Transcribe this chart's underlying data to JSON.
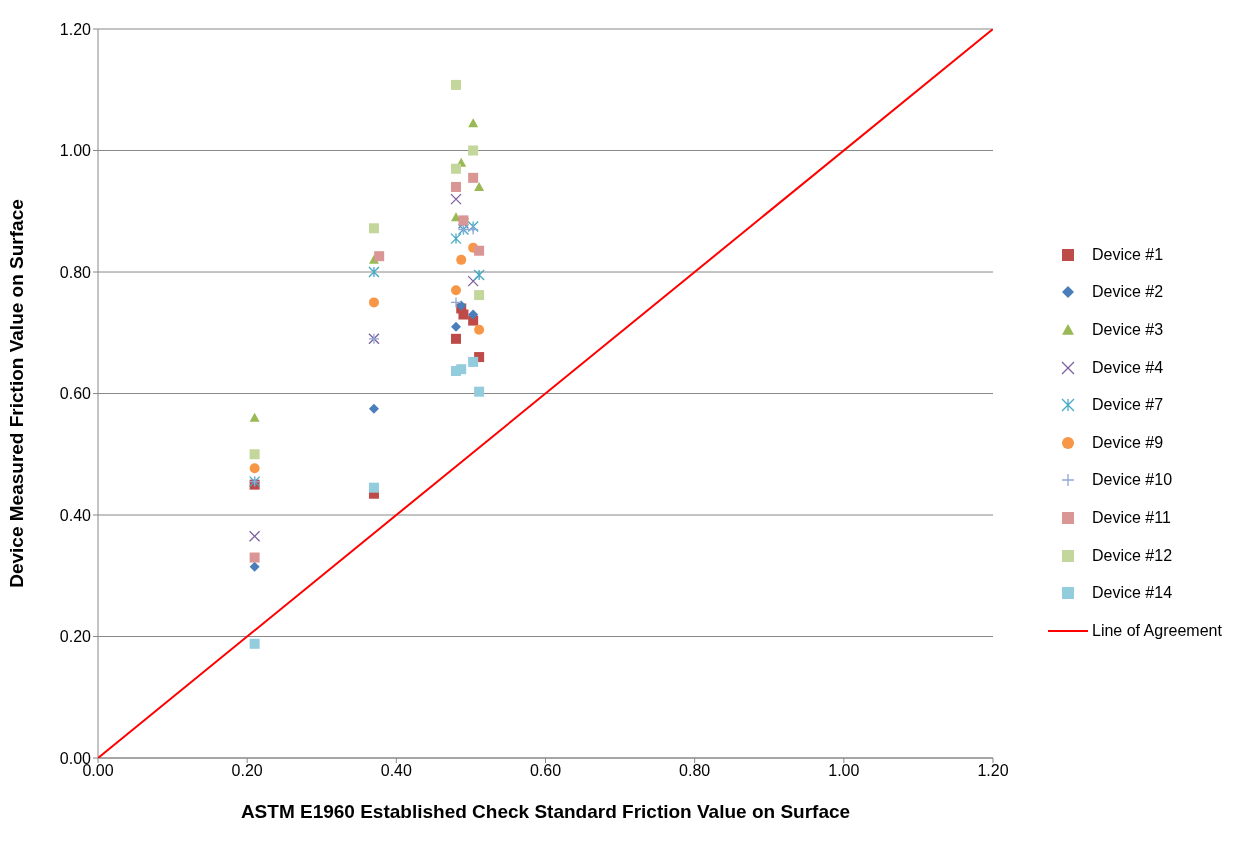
{
  "chart_data": {
    "type": "scatter",
    "xlabel": "ASTM E1960 Established Check Standard Friction Value on Surface",
    "ylabel": "Device Measured Friction Value on Surface",
    "xlim": [
      0,
      1.2
    ],
    "xticks": [
      {
        "value": 0,
        "label": "0.00"
      },
      {
        "value": 0.2,
        "label": "0.20"
      },
      {
        "value": 0.4,
        "label": "0.40"
      },
      {
        "value": 0.6,
        "label": "0.60"
      },
      {
        "value": 0.8,
        "label": "0.80"
      },
      {
        "value": 1,
        "label": "1.00"
      },
      {
        "value": 1.2,
        "label": "1.20"
      }
    ],
    "ylim": [
      0,
      1.2
    ],
    "yticks": [
      {
        "value": 0,
        "label": "0.00"
      },
      {
        "value": 0.2,
        "label": "0.20"
      },
      {
        "value": 0.4,
        "label": "0.40"
      },
      {
        "value": 0.6,
        "label": "0.60"
      },
      {
        "value": 0.8,
        "label": "0.80"
      },
      {
        "value": 1,
        "label": "1.00"
      },
      {
        "value": 1.2,
        "label": "1.20"
      }
    ],
    "grid": "y",
    "legend": "right",
    "series": [
      {
        "name": "Device #1",
        "color": "#be4b48",
        "marker": "square",
        "x": [
          0.21,
          0.37,
          0.48,
          0.487,
          0.49,
          0.503,
          0.511
        ],
        "values": [
          0.45,
          0.435,
          0.69,
          0.74,
          0.73,
          0.72,
          0.66
        ]
      },
      {
        "name": "Device #2",
        "color": "#4a7ebb",
        "marker": "diamond",
        "x": [
          0.21,
          0.37,
          0.48,
          0.487,
          0.503
        ],
        "values": [
          0.315,
          0.575,
          0.71,
          0.745,
          0.73
        ]
      },
      {
        "name": "Device #3",
        "color": "#98b954",
        "marker": "triangle",
        "x": [
          0.21,
          0.37,
          0.48,
          0.487,
          0.503,
          0.511
        ],
        "values": [
          0.56,
          0.82,
          0.89,
          0.98,
          1.045,
          0.94
        ]
      },
      {
        "name": "Device #4",
        "color": "#7d60a0",
        "marker": "x",
        "x": [
          0.21,
          0.37,
          0.48,
          0.49,
          0.503
        ],
        "values": [
          0.365,
          0.69,
          0.92,
          0.88,
          0.785
        ]
      },
      {
        "name": "Device #7",
        "color": "#46aac5",
        "marker": "cross",
        "x": [
          0.21,
          0.37,
          0.48,
          0.49,
          0.503,
          0.511
        ],
        "values": [
          0.455,
          0.8,
          0.855,
          0.87,
          0.875,
          0.795
        ]
      },
      {
        "name": "Device #9",
        "color": "#f79646",
        "marker": "circle",
        "x": [
          0.21,
          0.37,
          0.48,
          0.487,
          0.503,
          0.511
        ],
        "values": [
          0.477,
          0.75,
          0.77,
          0.82,
          0.84,
          0.705
        ]
      },
      {
        "name": "Device #10",
        "color": "#8fa8d5",
        "marker": "plus",
        "x": [
          0.21,
          0.37,
          0.48,
          0.49,
          0.503
        ],
        "values": [
          0.455,
          0.69,
          0.75,
          0.87,
          0.87
        ]
      },
      {
        "name": "Device #11",
        "color": "#d99694",
        "marker": "square",
        "x": [
          0.21,
          0.377,
          0.48,
          0.49,
          0.503,
          0.511
        ],
        "values": [
          0.33,
          0.826,
          0.94,
          0.885,
          0.955,
          0.835
        ]
      },
      {
        "name": "Device #12",
        "color": "#c3d69b",
        "marker": "square",
        "x": [
          0.21,
          0.37,
          0.48,
          0.48,
          0.503,
          0.511
        ],
        "values": [
          0.5,
          0.872,
          1.108,
          0.97,
          1.0,
          0.762
        ]
      },
      {
        "name": "Device #14",
        "color": "#93cddd",
        "marker": "square",
        "x": [
          0.21,
          0.37,
          0.48,
          0.487,
          0.503,
          0.511
        ],
        "values": [
          0.188,
          0.445,
          0.637,
          0.64,
          0.652,
          0.603
        ]
      },
      {
        "name": "Line of Agreement",
        "type": "line",
        "color": "#ff0000",
        "marker": "none",
        "line_style": "solid",
        "x": [
          0,
          1.2
        ],
        "values": [
          0,
          1.2
        ]
      }
    ]
  }
}
